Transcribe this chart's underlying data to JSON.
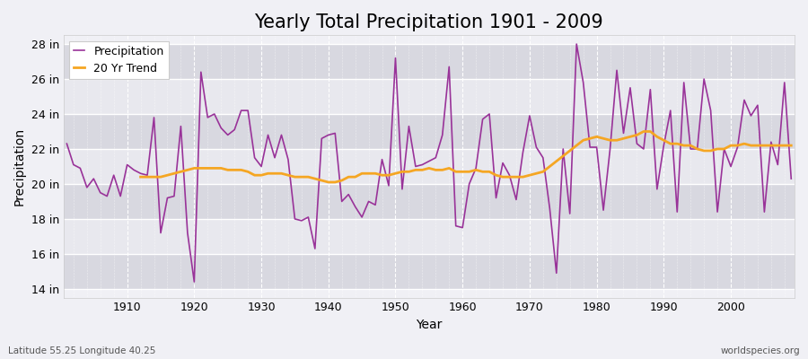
{
  "title": "Yearly Total Precipitation 1901 - 2009",
  "xlabel": "Year",
  "ylabel": "Precipitation",
  "years": [
    1901,
    1902,
    1903,
    1904,
    1905,
    1906,
    1907,
    1908,
    1909,
    1910,
    1911,
    1912,
    1913,
    1914,
    1915,
    1916,
    1917,
    1918,
    1919,
    1920,
    1921,
    1922,
    1923,
    1924,
    1925,
    1926,
    1927,
    1928,
    1929,
    1930,
    1931,
    1932,
    1933,
    1934,
    1935,
    1936,
    1937,
    1938,
    1939,
    1940,
    1941,
    1942,
    1943,
    1944,
    1945,
    1946,
    1947,
    1948,
    1949,
    1950,
    1951,
    1952,
    1953,
    1954,
    1955,
    1956,
    1957,
    1958,
    1959,
    1960,
    1961,
    1962,
    1963,
    1964,
    1965,
    1966,
    1967,
    1968,
    1969,
    1970,
    1971,
    1972,
    1973,
    1974,
    1975,
    1976,
    1977,
    1978,
    1979,
    1980,
    1981,
    1982,
    1983,
    1984,
    1985,
    1986,
    1987,
    1988,
    1989,
    1990,
    1991,
    1992,
    1993,
    1994,
    1995,
    1996,
    1997,
    1998,
    1999,
    2000,
    2001,
    2002,
    2003,
    2004,
    2005,
    2006,
    2007,
    2008,
    2009
  ],
  "precip": [
    22.3,
    21.1,
    20.9,
    19.8,
    20.3,
    19.5,
    19.3,
    20.5,
    19.3,
    21.1,
    20.8,
    20.6,
    20.5,
    23.8,
    17.2,
    19.2,
    19.3,
    23.3,
    17.2,
    14.4,
    26.4,
    23.8,
    24.0,
    23.2,
    22.8,
    23.1,
    24.2,
    24.2,
    21.5,
    21.0,
    22.8,
    21.5,
    22.8,
    21.4,
    18.0,
    17.9,
    18.1,
    16.3,
    22.6,
    22.8,
    22.9,
    19.0,
    19.4,
    18.7,
    18.1,
    19.0,
    18.8,
    21.4,
    19.9,
    27.2,
    19.7,
    23.3,
    21.0,
    21.1,
    21.3,
    21.5,
    22.8,
    26.7,
    17.6,
    17.5,
    20.0,
    20.9,
    23.7,
    24.0,
    19.2,
    21.2,
    20.5,
    19.1,
    21.8,
    23.9,
    22.1,
    21.5,
    18.6,
    14.9,
    22.0,
    18.3,
    28.0,
    25.8,
    22.1,
    22.1,
    18.5,
    22.0,
    26.5,
    22.9,
    25.5,
    22.3,
    22.0,
    25.4,
    19.7,
    22.2,
    24.2,
    18.4,
    25.8,
    22.0,
    22.0,
    26.0,
    24.2,
    18.4,
    22.0,
    21.0,
    22.1,
    24.8,
    23.9,
    24.5,
    18.4,
    22.4,
    21.1,
    25.8,
    20.3
  ],
  "trend_years": [
    1912,
    1913,
    1914,
    1915,
    1916,
    1917,
    1918,
    1919,
    1920,
    1921,
    1922,
    1923,
    1924,
    1925,
    1926,
    1927,
    1928,
    1929,
    1930,
    1931,
    1932,
    1933,
    1934,
    1935,
    1936,
    1937,
    1938,
    1939,
    1940,
    1941,
    1942,
    1943,
    1944,
    1945,
    1946,
    1947,
    1948,
    1949,
    1950,
    1951,
    1952,
    1953,
    1954,
    1955,
    1956,
    1957,
    1958,
    1959,
    1960,
    1961,
    1962,
    1963,
    1964,
    1965,
    1966,
    1967,
    1968,
    1969,
    1970,
    1971,
    1972,
    1973,
    1974,
    1975,
    1976,
    1977,
    1978,
    1979,
    1980,
    1981,
    1982,
    1983,
    1984,
    1985,
    1986,
    1987,
    1988,
    1989,
    1990,
    1991,
    1992,
    1993,
    1994,
    1995,
    1996,
    1997,
    1998,
    1999,
    2000,
    2001,
    2002,
    2003,
    2004,
    2005,
    2006,
    2007,
    2008,
    2009
  ],
  "trend": [
    20.4,
    20.4,
    20.4,
    20.4,
    20.5,
    20.6,
    20.7,
    20.8,
    20.9,
    20.9,
    20.9,
    20.9,
    20.9,
    20.8,
    20.8,
    20.8,
    20.7,
    20.5,
    20.5,
    20.6,
    20.6,
    20.6,
    20.5,
    20.4,
    20.4,
    20.4,
    20.3,
    20.2,
    20.1,
    20.1,
    20.2,
    20.4,
    20.4,
    20.6,
    20.6,
    20.6,
    20.5,
    20.5,
    20.6,
    20.7,
    20.7,
    20.8,
    20.8,
    20.9,
    20.8,
    20.8,
    20.9,
    20.7,
    20.7,
    20.7,
    20.8,
    20.7,
    20.7,
    20.5,
    20.4,
    20.4,
    20.4,
    20.4,
    20.5,
    20.6,
    20.7,
    21.0,
    21.3,
    21.6,
    21.9,
    22.2,
    22.5,
    22.6,
    22.7,
    22.6,
    22.5,
    22.5,
    22.6,
    22.7,
    22.8,
    23.0,
    23.0,
    22.7,
    22.5,
    22.3,
    22.3,
    22.2,
    22.2,
    22.0,
    21.9,
    21.9,
    22.0,
    22.0,
    22.2,
    22.2,
    22.3,
    22.2,
    22.2,
    22.2,
    22.2,
    22.2,
    22.2,
    22.2
  ],
  "precip_color": "#993399",
  "trend_color": "#f5a623",
  "bg_color": "#f0f0f5",
  "band_color1": "#e8e8ee",
  "band_color2": "#d8d8e0",
  "grid_color": "#ffffff",
  "ylim": [
    13.5,
    28.5
  ],
  "yticks": [
    14,
    16,
    18,
    20,
    22,
    24,
    26,
    28
  ],
  "ytick_labels": [
    "14 in",
    "16 in",
    "18 in",
    "20 in",
    "22 in",
    "24 in",
    "26 in",
    "28 in"
  ],
  "xticks": [
    1910,
    1920,
    1930,
    1940,
    1950,
    1960,
    1970,
    1980,
    1990,
    2000
  ],
  "title_fontsize": 15,
  "label_fontsize": 10,
  "tick_fontsize": 9,
  "footer_left": "Latitude 55.25 Longitude 40.25",
  "footer_right": "worldspecies.org"
}
